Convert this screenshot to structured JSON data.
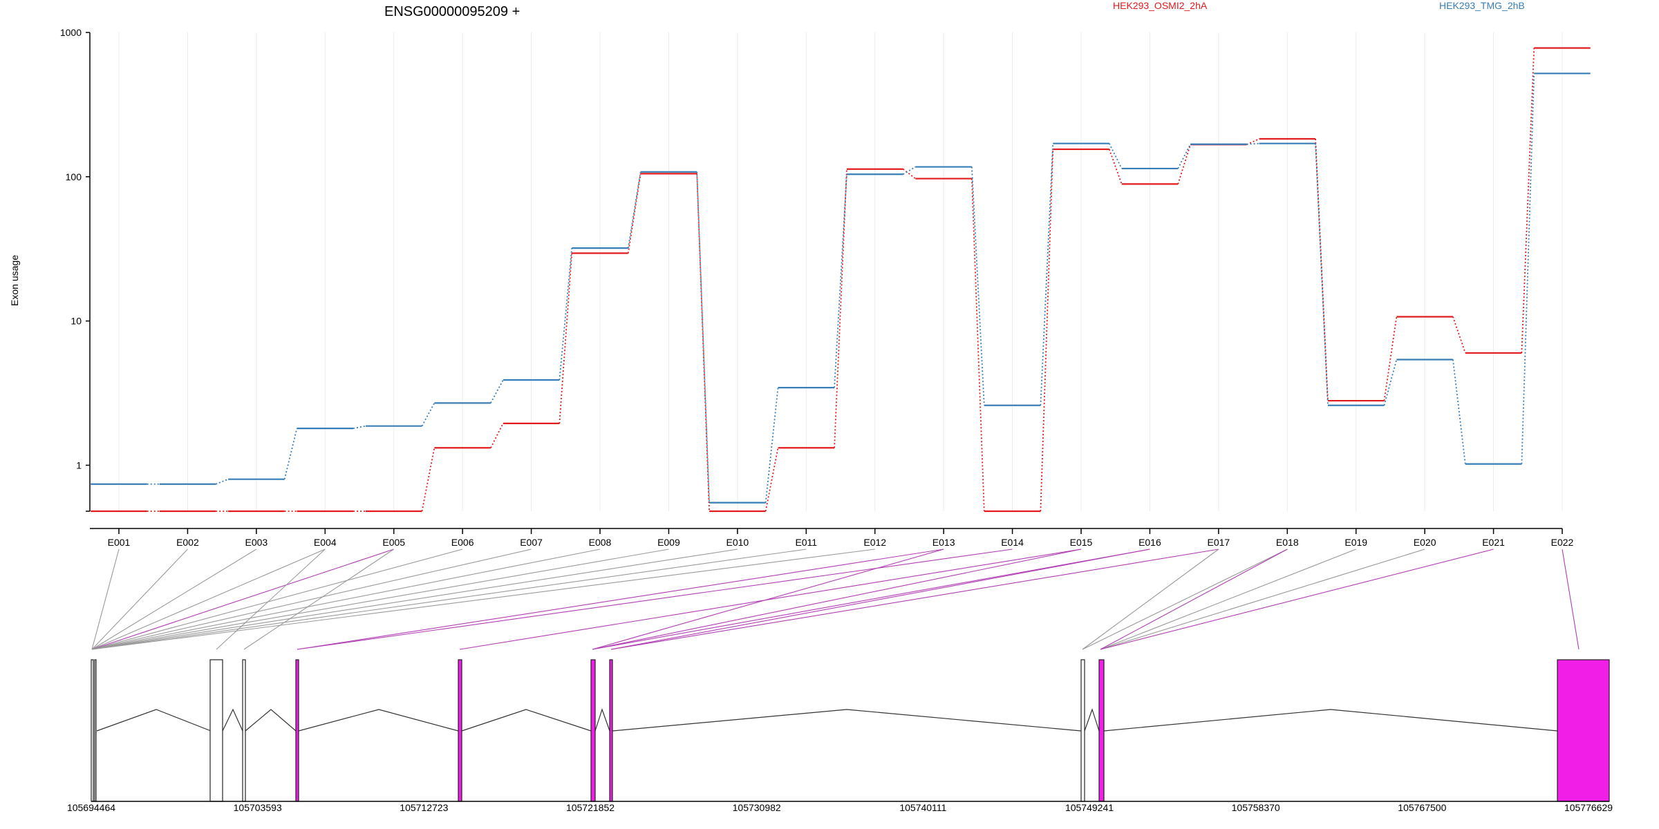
{
  "chart_data": {
    "type": "line",
    "title": "ENSG00000095209 +",
    "ylabel": "Exon usage",
    "yscale": "log",
    "ylim": [
      0.48,
      1000
    ],
    "yticks": [
      "1",
      "10",
      "100",
      "1000"
    ],
    "grid": "vertical",
    "legend_position": "top-right",
    "categories": [
      "E001",
      "E002",
      "E003",
      "E004",
      "E005",
      "E006",
      "E007",
      "E008",
      "E009",
      "E010",
      "E011",
      "E012",
      "E013",
      "E014",
      "E015",
      "E016",
      "E017",
      "E018",
      "E019",
      "E020",
      "E021",
      "E022"
    ],
    "series": [
      {
        "name": "HEK293_OSMI2_2hA",
        "color": "#e31a1c",
        "values": [
          0.48,
          0.48,
          0.48,
          0.48,
          0.48,
          1.32,
          1.95,
          29.5,
          105,
          0.48,
          1.32,
          113,
          97,
          0.48,
          155,
          89,
          167,
          183,
          2.8,
          10.7,
          6.0,
          780
        ]
      },
      {
        "name": "HEK293_TMG_2hB",
        "color": "#377eb8",
        "values": [
          0.74,
          0.74,
          0.8,
          1.8,
          1.87,
          2.7,
          3.9,
          32,
          108,
          0.55,
          3.45,
          104,
          117,
          2.6,
          170,
          114,
          168,
          170,
          2.6,
          5.4,
          1.02,
          520
        ]
      }
    ]
  },
  "gene_model": {
    "coordinate_labels": [
      "105694464",
      "105703593",
      "105712723",
      "105721852",
      "105730982",
      "105740111",
      "105749241",
      "105758370",
      "105767500",
      "105776629"
    ],
    "highlight_color": "#f01ee6",
    "exon_colors": {
      "normal": "#ffffff",
      "highlight": "#f01ee6"
    }
  }
}
